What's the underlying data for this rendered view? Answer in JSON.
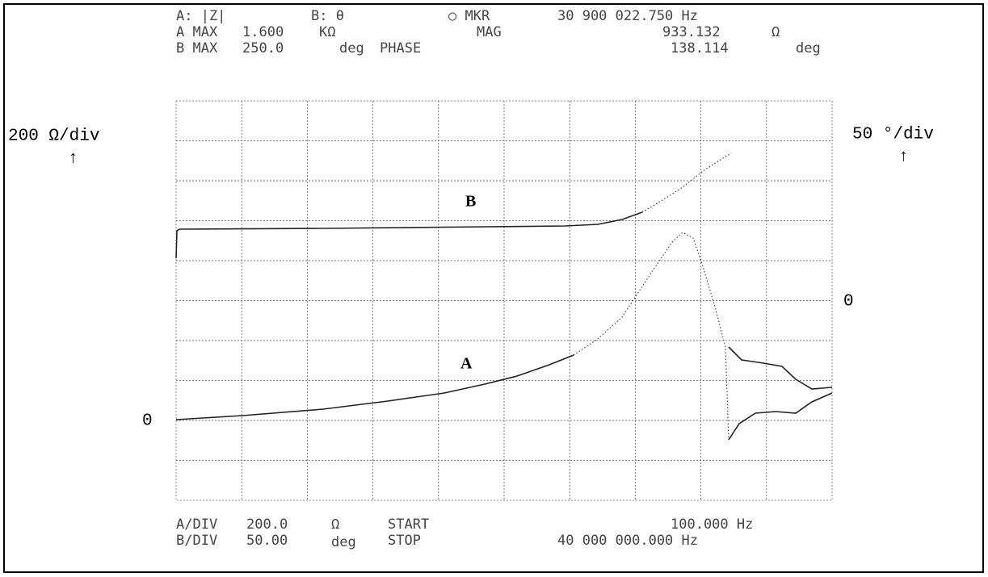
{
  "header": {
    "rows": [
      [
        "A: |Z|",
        "B: θ",
        "○ MKR",
        "30 900 022.750 Hz"
      ],
      [
        "A MAX",
        "1.600",
        "KΩ",
        "MAG",
        "933.132",
        "Ω"
      ],
      [
        "B MAX",
        "250.0",
        "deg",
        "PHASE",
        "138.114",
        "deg"
      ]
    ]
  },
  "footer": {
    "rows": [
      [
        "A/DIV",
        "200.0",
        "Ω",
        "START",
        "100.000 Hz"
      ],
      [
        "B/DIV",
        "50.00",
        "deg",
        "STOP",
        "40 000 000.000 Hz"
      ]
    ]
  },
  "left_axis": {
    "scale": "200 Ω/div",
    "arrow": "↑",
    "zero": "0"
  },
  "right_axis": {
    "scale": "50 °/div",
    "arrow": "↑",
    "zero": "0"
  },
  "traces": {
    "a": "A",
    "b": "B"
  }
}
